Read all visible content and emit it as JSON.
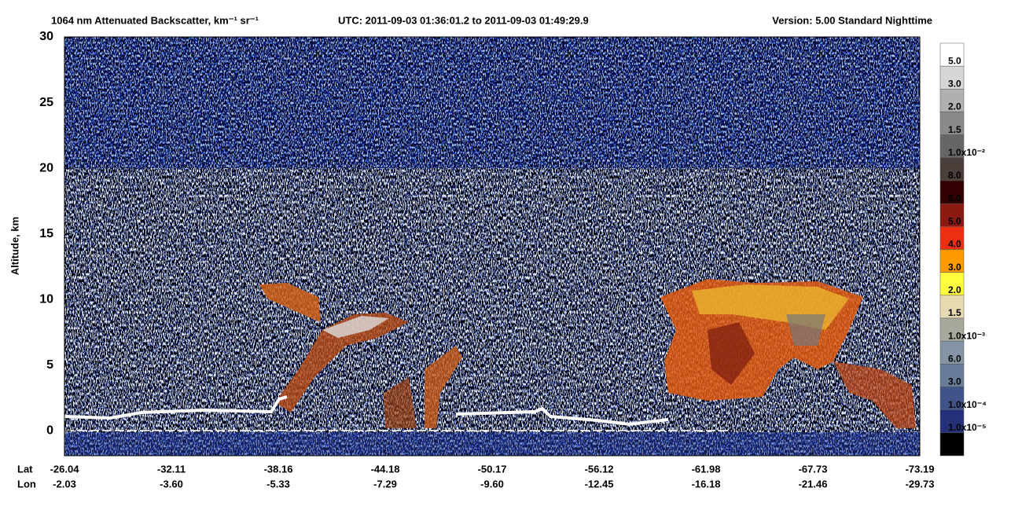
{
  "chart_data": {
    "type": "heatmap",
    "title": "1064 nm Attenuated Backscatter, km⁻¹ sr⁻¹",
    "subtitle": "UTC:  2011-09-03 01:36:01.2  to  2011-09-03 01:49:29.9",
    "version": "Version: 5.00  Standard  Nighttime",
    "ylabel": "Altitude, km",
    "ylim": [
      -1.9,
      30
    ],
    "yticks": [
      0,
      5,
      10,
      15,
      20,
      25,
      30
    ],
    "x_row_labels": [
      "Lat",
      "Lon"
    ],
    "lat": [
      "-26.04",
      "-32.11",
      "-38.16",
      "-44.18",
      "-50.17",
      "-56.12",
      "-61.98",
      "-67.73",
      "-73.19"
    ],
    "lon": [
      "-2.03",
      "-3.60",
      "-5.33",
      "-7.29",
      "-9.60",
      "-12.45",
      "-16.18",
      "-21.46",
      "-29.73"
    ],
    "colorbar": {
      "colors": [
        "#ffffff",
        "#d6d6d6",
        "#b0b0b0",
        "#8a8a8a",
        "#666666",
        "#4a3e3a",
        "#320000",
        "#8a1a12",
        "#ea3010",
        "#ff9a00",
        "#ffff40",
        "#e8dab0",
        "#a8a89c",
        "#8494a4",
        "#667c98",
        "#40548a",
        "#26307a",
        "#000000"
      ],
      "labels": [
        "5.0",
        "3.0",
        "2.0",
        "1.5",
        "1.0x10⁻²",
        "8.0",
        "6.0",
        "5.0",
        "4.0",
        "3.0",
        "2.0",
        "1.5",
        "1.0x10⁻³",
        "6.0",
        "3.0",
        "1.0x10⁻⁴",
        "1.0x10⁻⁵"
      ]
    }
  }
}
